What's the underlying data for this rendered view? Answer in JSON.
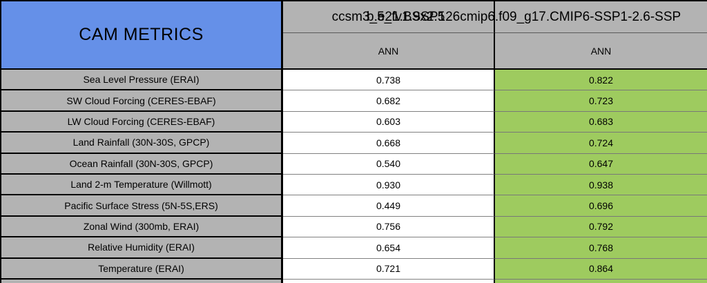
{
  "header": {
    "title": "CAM METRICS",
    "columns": [
      {
        "model": "ccsm3_5_fv1.9x2.5",
        "season": "ANN"
      },
      {
        "model": "b.e21.BSSP126cmip6.f09_g17.CMIP6-SSP1-2.6-SSP",
        "season": "ANN"
      }
    ]
  },
  "rows": [
    {
      "metric": "Sea Level Pressure (ERAI)",
      "control": "0.738",
      "test": "0.822"
    },
    {
      "metric": "SW Cloud Forcing (CERES-EBAF)",
      "control": "0.682",
      "test": "0.723"
    },
    {
      "metric": "LW Cloud Forcing (CERES-EBAF)",
      "control": "0.603",
      "test": "0.683"
    },
    {
      "metric": "Land Rainfall (30N-30S, GPCP)",
      "control": "0.668",
      "test": "0.724"
    },
    {
      "metric": "Ocean Rainfall (30N-30S, GPCP)",
      "control": "0.540",
      "test": "0.647"
    },
    {
      "metric": "Land 2-m Temperature (Willmott)",
      "control": "0.930",
      "test": "0.938"
    },
    {
      "metric": "Pacific Surface Stress (5N-5S,ERS)",
      "control": "0.449",
      "test": "0.696"
    },
    {
      "metric": "Zonal Wind (300mb, ERAI)",
      "control": "0.756",
      "test": "0.792"
    },
    {
      "metric": "Relative Humidity (ERAI)",
      "control": "0.654",
      "test": "0.768"
    },
    {
      "metric": "Temperature (ERAI)",
      "control": "0.721",
      "test": "0.864"
    }
  ],
  "colors": {
    "title_bg": "#6590e8",
    "label_bg": "#b3b3b3",
    "better_bg": "#9ecb5f",
    "control_bg": "#ffffff"
  },
  "chart_data": {
    "type": "table",
    "title": "CAM METRICS",
    "column_headers": [
      "ccsm3_5_fv1.9x2.5 ANN",
      "b.e21.BSSP126cmip6.f09_g17.CMIP6-SSP1-2.6-SSP ANN"
    ],
    "categories": [
      "Sea Level Pressure (ERAI)",
      "SW Cloud Forcing (CERES-EBAF)",
      "LW Cloud Forcing (CERES-EBAF)",
      "Land Rainfall (30N-30S, GPCP)",
      "Ocean Rainfall (30N-30S, GPCP)",
      "Land 2-m Temperature (Willmott)",
      "Pacific Surface Stress (5N-5S,ERS)",
      "Zonal Wind (300mb, ERAI)",
      "Relative Humidity (ERAI)",
      "Temperature (ERAI)"
    ],
    "series": [
      {
        "name": "ccsm3_5_fv1.9x2.5",
        "values": [
          0.738,
          0.682,
          0.603,
          0.668,
          0.54,
          0.93,
          0.449,
          0.756,
          0.654,
          0.721
        ]
      },
      {
        "name": "b.e21.BSSP126cmip6.f09_g17.CMIP6-SSP1-2.6-SSP",
        "values": [
          0.822,
          0.723,
          0.683,
          0.724,
          0.647,
          0.938,
          0.696,
          0.792,
          0.768,
          0.864
        ]
      }
    ],
    "highlight": "second series cells shaded green (better score)"
  }
}
